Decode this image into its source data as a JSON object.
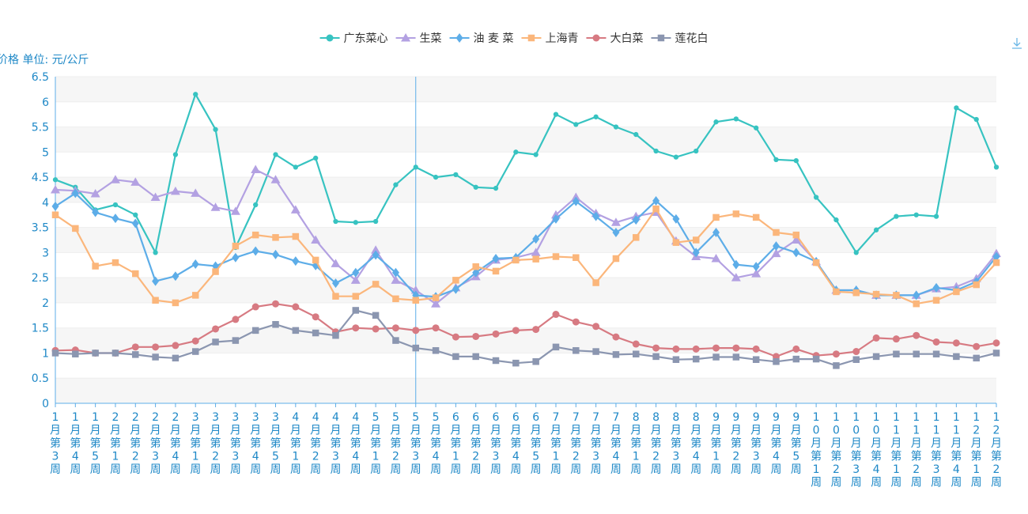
{
  "chart_data": {
    "type": "line",
    "ylabel": "价格 单位: 元/公斤",
    "ylim": [
      0,
      6.5
    ],
    "yticks": [
      "0",
      "0.5",
      "1",
      "1.5",
      "2",
      "2.5",
      "3",
      "3.5",
      "4",
      "4.5",
      "5",
      "5.5",
      "6",
      "6.5"
    ],
    "grid": "horizontal bands",
    "legend_position": "top-center",
    "crosshair_category": "5月第3周",
    "categories": [
      "1月第3周",
      "1月第4周",
      "1月第5周",
      "2月第1周",
      "2月第2周",
      "2月第3周",
      "2月第4周",
      "3月第1周",
      "3月第2周",
      "3月第3周",
      "3月第4周",
      "3月第5周",
      "4月第1周",
      "4月第2周",
      "4月第3周",
      "4月第4周",
      "5月第1周",
      "5月第2周",
      "5月第3周",
      "5月第4周",
      "6月第1周",
      "6月第2周",
      "6月第3周",
      "6月第4周",
      "6月第5周",
      "7月第1周",
      "7月第2周",
      "7月第3周",
      "7月第4周",
      "8月第1周",
      "8月第2周",
      "8月第3周",
      "8月第4周",
      "9月第1周",
      "9月第2周",
      "9月第3周",
      "9月第4周",
      "9月第5周",
      "10月第1周",
      "10月第2周",
      "10月第3周",
      "10月第4周",
      "11月第1周",
      "11月第2周",
      "11月第3周",
      "11月第4周",
      "12月第1周",
      "12月第2周"
    ],
    "series": [
      {
        "name": "广东菜心",
        "color": "#37c3c1",
        "symbol": "circle",
        "values": [
          4.45,
          4.3,
          3.85,
          3.95,
          3.75,
          3.0,
          4.95,
          6.15,
          5.45,
          3.1,
          3.95,
          4.95,
          4.7,
          4.88,
          3.62,
          3.6,
          3.62,
          4.35,
          4.7,
          4.5,
          4.55,
          4.3,
          4.28,
          5.0,
          4.95,
          5.75,
          5.55,
          5.7,
          5.5,
          5.35,
          5.02,
          4.9,
          5.02,
          5.6,
          5.66,
          5.48,
          4.85,
          4.83,
          4.1,
          3.65,
          3.0,
          3.45,
          3.72,
          3.75,
          3.72,
          5.88,
          5.65,
          4.7
        ]
      },
      {
        "name": "生菜",
        "color": "#b3a1e2",
        "symbol": "triangle",
        "values": [
          4.25,
          4.23,
          4.17,
          4.45,
          4.4,
          4.1,
          4.22,
          4.18,
          3.9,
          3.82,
          4.65,
          4.45,
          3.85,
          3.25,
          2.78,
          2.45,
          3.05,
          2.45,
          2.25,
          1.98,
          2.3,
          2.52,
          2.85,
          2.9,
          3.0,
          3.75,
          4.1,
          3.78,
          3.6,
          3.72,
          3.8,
          3.23,
          2.92,
          2.88,
          2.5,
          2.58,
          2.98,
          3.25,
          2.82,
          2.25,
          2.25,
          2.15,
          2.15,
          2.15,
          2.28,
          2.32,
          2.48,
          2.98
        ]
      },
      {
        "name": "油 麦 菜",
        "color": "#5dade8",
        "symbol": "diamond",
        "values": [
          3.92,
          4.18,
          3.8,
          3.68,
          3.58,
          2.43,
          2.53,
          2.77,
          2.73,
          2.9,
          3.03,
          2.96,
          2.83,
          2.74,
          2.39,
          2.6,
          2.95,
          2.6,
          2.15,
          2.12,
          2.27,
          2.6,
          2.88,
          2.9,
          3.27,
          3.67,
          4.02,
          3.72,
          3.4,
          3.65,
          4.03,
          3.67,
          3.0,
          3.4,
          2.76,
          2.72,
          3.13,
          3.0,
          2.82,
          2.25,
          2.25,
          2.15,
          2.15,
          2.15,
          2.3,
          2.25,
          2.42,
          2.92
        ]
      },
      {
        "name": "上海青",
        "color": "#fbb67b",
        "symbol": "square",
        "values": [
          3.75,
          3.48,
          2.73,
          2.8,
          2.58,
          2.05,
          2.0,
          2.15,
          2.62,
          3.13,
          3.35,
          3.3,
          3.32,
          2.85,
          2.13,
          2.13,
          2.37,
          2.08,
          2.05,
          2.1,
          2.45,
          2.72,
          2.63,
          2.85,
          2.87,
          2.92,
          2.9,
          2.4,
          2.88,
          3.3,
          3.87,
          3.2,
          3.25,
          3.7,
          3.77,
          3.7,
          3.4,
          3.35,
          2.8,
          2.22,
          2.2,
          2.17,
          2.15,
          1.98,
          2.05,
          2.22,
          2.36,
          2.8
        ]
      },
      {
        "name": "大白菜",
        "color": "#d77a82",
        "symbol": "circle",
        "values": [
          1.05,
          1.06,
          1.0,
          1.0,
          1.12,
          1.12,
          1.15,
          1.24,
          1.48,
          1.67,
          1.92,
          1.98,
          1.92,
          1.72,
          1.42,
          1.5,
          1.48,
          1.5,
          1.45,
          1.5,
          1.32,
          1.33,
          1.38,
          1.45,
          1.47,
          1.77,
          1.62,
          1.53,
          1.32,
          1.18,
          1.1,
          1.08,
          1.08,
          1.1,
          1.1,
          1.08,
          0.93,
          1.08,
          0.95,
          0.98,
          1.03,
          1.3,
          1.28,
          1.35,
          1.22,
          1.2,
          1.13,
          1.2
        ]
      },
      {
        "name": "莲花白",
        "color": "#8b96b0",
        "symbol": "square",
        "values": [
          1.0,
          0.98,
          1.0,
          1.0,
          0.97,
          0.92,
          0.9,
          1.03,
          1.22,
          1.25,
          1.45,
          1.57,
          1.45,
          1.4,
          1.35,
          1.85,
          1.75,
          1.25,
          1.1,
          1.05,
          0.93,
          0.93,
          0.85,
          0.8,
          0.83,
          1.12,
          1.05,
          1.03,
          0.97,
          0.98,
          0.93,
          0.87,
          0.88,
          0.92,
          0.92,
          0.87,
          0.83,
          0.88,
          0.88,
          0.75,
          0.87,
          0.93,
          0.98,
          0.98,
          0.98,
          0.93,
          0.9,
          1.0
        ]
      }
    ]
  },
  "toolbar": {
    "download_icon": "download-icon"
  }
}
